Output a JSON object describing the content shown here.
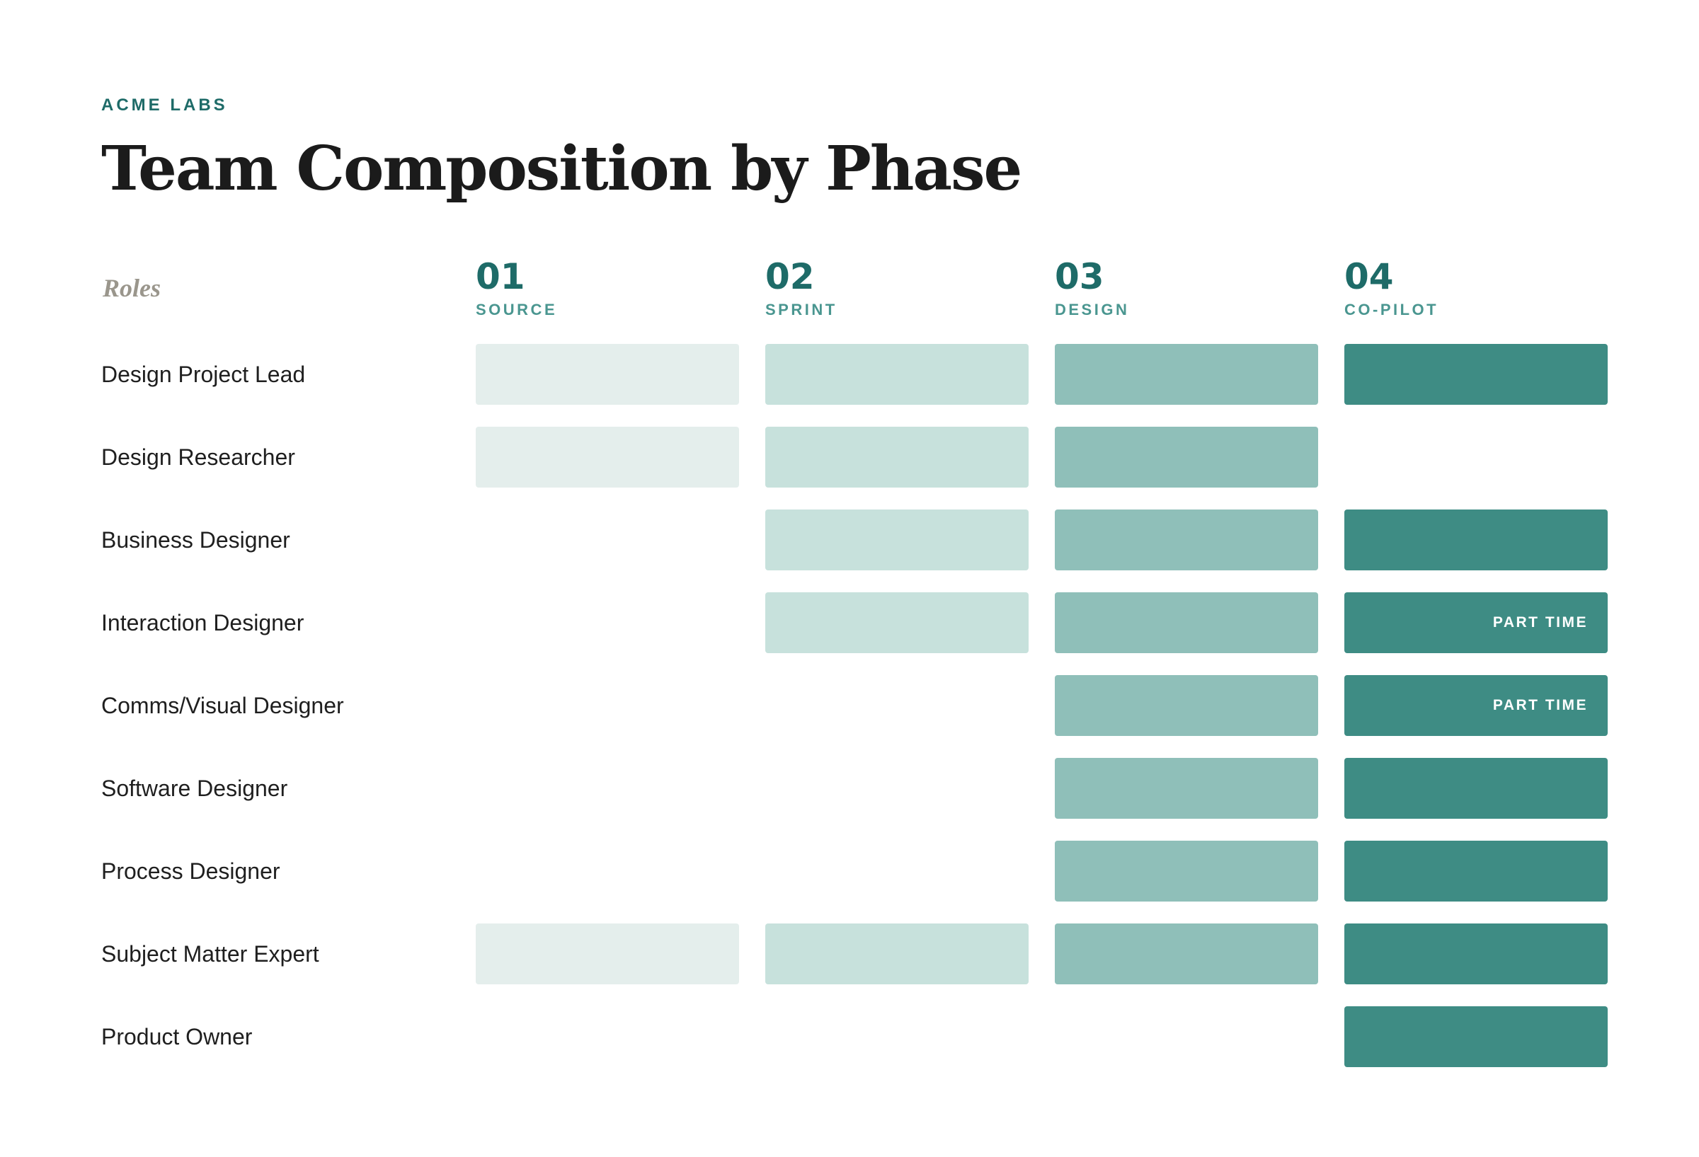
{
  "header": {
    "org": "ACME LABS",
    "title": "Team Composition by Phase"
  },
  "roles_heading": "Roles",
  "phases": [
    {
      "number": "01",
      "name": "SOURCE",
      "color": "#e4eeec"
    },
    {
      "number": "02",
      "name": "SPRINT",
      "color": "#c7e1dc"
    },
    {
      "number": "03",
      "name": "DESIGN",
      "color": "#8fbfb9"
    },
    {
      "number": "04",
      "name": "CO-PILOT",
      "color": "#3e8c84"
    }
  ],
  "roles": [
    {
      "name": "Design Project Lead",
      "phases": [
        true,
        true,
        true,
        true
      ],
      "notes": [
        "",
        "",
        "",
        ""
      ]
    },
    {
      "name": "Design Researcher",
      "phases": [
        true,
        true,
        true,
        false
      ],
      "notes": [
        "",
        "",
        "",
        ""
      ]
    },
    {
      "name": "Business Designer",
      "phases": [
        false,
        true,
        true,
        true
      ],
      "notes": [
        "",
        "",
        "",
        ""
      ]
    },
    {
      "name": "Interaction Designer",
      "phases": [
        false,
        true,
        true,
        true
      ],
      "notes": [
        "",
        "",
        "",
        "PART TIME"
      ]
    },
    {
      "name": "Comms/Visual Designer",
      "phases": [
        false,
        false,
        true,
        true
      ],
      "notes": [
        "",
        "",
        "",
        "PART TIME"
      ]
    },
    {
      "name": "Software Designer",
      "phases": [
        false,
        false,
        true,
        true
      ],
      "notes": [
        "",
        "",
        "",
        ""
      ]
    },
    {
      "name": "Process Designer",
      "phases": [
        false,
        false,
        true,
        true
      ],
      "notes": [
        "",
        "",
        "",
        ""
      ]
    },
    {
      "name": "Subject Matter Expert",
      "phases": [
        true,
        true,
        true,
        true
      ],
      "notes": [
        "",
        "",
        "",
        ""
      ]
    },
    {
      "name": "Product Owner",
      "phases": [
        false,
        false,
        false,
        true
      ],
      "notes": [
        "",
        "",
        "",
        ""
      ]
    }
  ]
}
